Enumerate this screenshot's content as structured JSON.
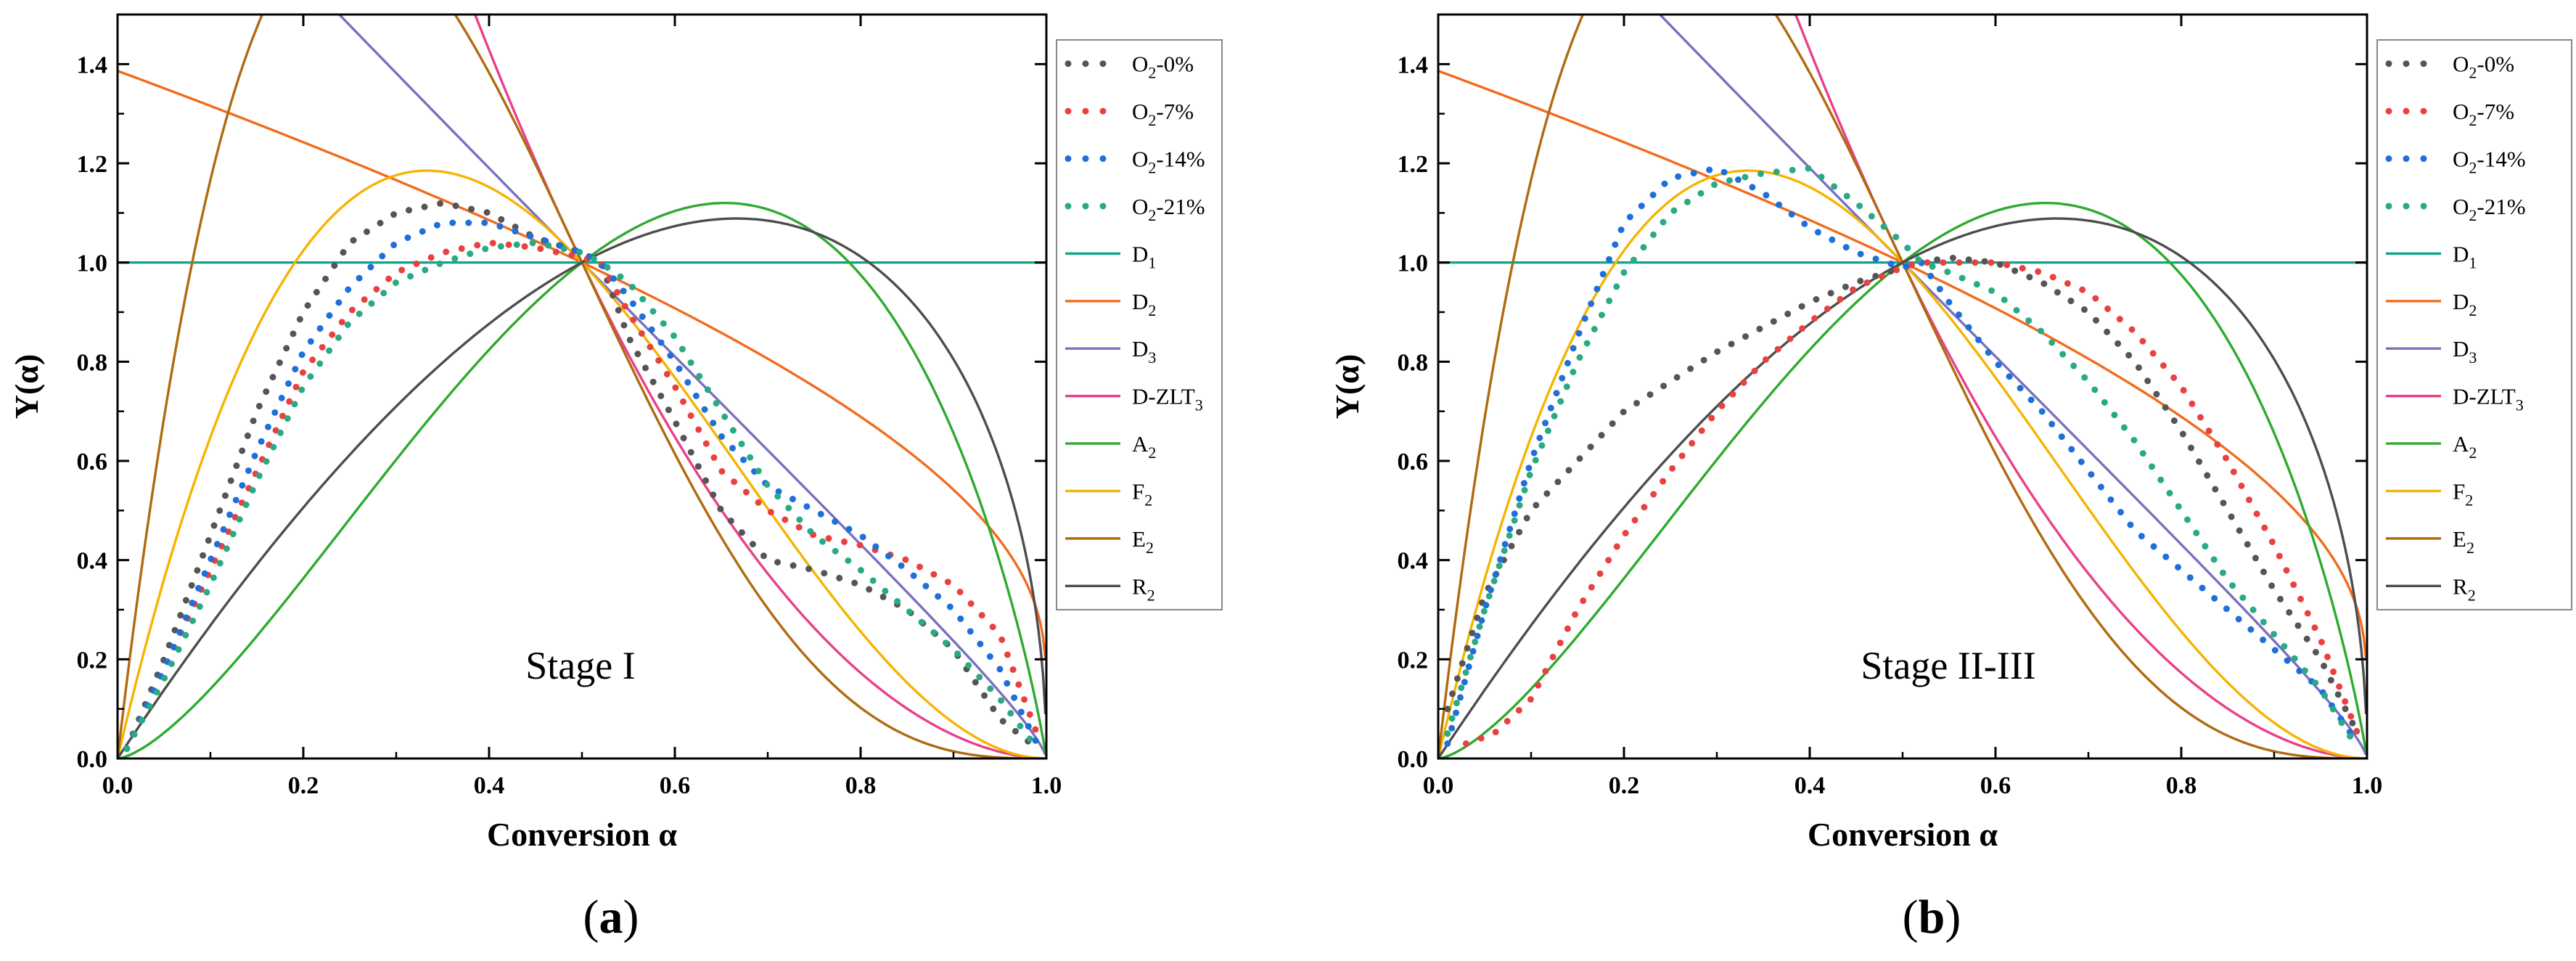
{
  "chart_data": [
    {
      "type": "line",
      "panel": "a",
      "panel_label_prefix": "(",
      "panel_label_letter": "a",
      "panel_label_suffix": ")",
      "annotation": "Stage I",
      "xlabel": "Conversion α",
      "ylabel": "Y(α)",
      "xlim": [
        0,
        1.0
      ],
      "ylim": [
        0,
        1.5
      ],
      "x_ticks": [
        "0.0",
        "0.2",
        "0.4",
        "0.6",
        "0.8",
        "1.0"
      ],
      "y_ticks": [
        "0.0",
        "0.2",
        "0.4",
        "0.6",
        "0.8",
        "1.0",
        "1.2",
        "1.4"
      ],
      "series": [
        {
          "name": "O2-0%",
          "name_main": "O",
          "name_sub": "2",
          "name_rest": "-0%",
          "style": "dotted",
          "color": "#555555",
          "x": [
            0.01,
            0.05,
            0.1,
            0.15,
            0.2,
            0.25,
            0.3,
            0.35,
            0.4,
            0.45,
            0.5,
            0.52,
            0.55,
            0.6,
            0.65,
            0.7,
            0.75,
            0.8,
            0.85,
            0.9,
            0.95,
            0.99
          ],
          "y": [
            0.02,
            0.2,
            0.45,
            0.7,
            0.9,
            1.04,
            1.1,
            1.12,
            1.1,
            1.05,
            1.02,
            1.0,
            0.85,
            0.68,
            0.5,
            0.4,
            0.38,
            0.35,
            0.3,
            0.22,
            0.08,
            0.02
          ]
        },
        {
          "name": "O2-7%",
          "name_main": "O",
          "name_sub": "2",
          "name_rest": "-7%",
          "style": "dotted",
          "color": "#e8413f",
          "x": [
            0.01,
            0.05,
            0.1,
            0.15,
            0.2,
            0.25,
            0.3,
            0.35,
            0.4,
            0.45,
            0.5,
            0.52,
            0.55,
            0.6,
            0.65,
            0.7,
            0.75,
            0.8,
            0.85,
            0.9,
            0.95,
            0.99
          ],
          "y": [
            0.02,
            0.18,
            0.38,
            0.58,
            0.78,
            0.9,
            0.98,
            1.02,
            1.04,
            1.03,
            1.01,
            1.0,
            0.9,
            0.75,
            0.58,
            0.5,
            0.45,
            0.43,
            0.4,
            0.35,
            0.25,
            0.05
          ]
        },
        {
          "name": "O2-14%",
          "name_main": "O",
          "name_sub": "2",
          "name_rest": "-14%",
          "style": "dotted",
          "color": "#1e6fd9",
          "x": [
            0.01,
            0.05,
            0.1,
            0.15,
            0.2,
            0.25,
            0.3,
            0.35,
            0.4,
            0.45,
            0.5,
            0.52,
            0.55,
            0.6,
            0.65,
            0.7,
            0.75,
            0.8,
            0.85,
            0.9,
            0.95,
            0.99
          ],
          "y": [
            0.02,
            0.18,
            0.4,
            0.62,
            0.82,
            0.95,
            1.04,
            1.08,
            1.08,
            1.05,
            1.02,
            1.0,
            0.93,
            0.8,
            0.65,
            0.55,
            0.5,
            0.45,
            0.38,
            0.3,
            0.18,
            0.03
          ]
        },
        {
          "name": "O2-21%",
          "name_main": "O",
          "name_sub": "2",
          "name_rest": "-21%",
          "style": "dotted",
          "color": "#2aa985",
          "x": [
            0.01,
            0.05,
            0.1,
            0.15,
            0.2,
            0.25,
            0.3,
            0.35,
            0.4,
            0.45,
            0.5,
            0.52,
            0.55,
            0.6,
            0.65,
            0.7,
            0.75,
            0.8,
            0.85,
            0.9,
            0.95,
            0.99
          ],
          "y": [
            0.02,
            0.16,
            0.35,
            0.56,
            0.75,
            0.88,
            0.96,
            1.0,
            1.03,
            1.04,
            1.02,
            1.0,
            0.96,
            0.85,
            0.7,
            0.55,
            0.45,
            0.38,
            0.3,
            0.22,
            0.12,
            0.02
          ]
        }
      ]
    },
    {
      "type": "line",
      "panel": "b",
      "panel_label_prefix": "(",
      "panel_label_letter": "b",
      "panel_label_suffix": ")",
      "annotation": "Stage II-III",
      "xlabel": "Conversion α",
      "ylabel": "Y(α)",
      "xlim": [
        0,
        1.0
      ],
      "ylim": [
        0,
        1.5
      ],
      "x_ticks": [
        "0.0",
        "0.2",
        "0.4",
        "0.6",
        "0.8",
        "1.0"
      ],
      "y_ticks": [
        "0.0",
        "0.2",
        "0.4",
        "0.6",
        "0.8",
        "1.0",
        "1.2",
        "1.4"
      ],
      "series": [
        {
          "name": "O2-0%",
          "name_main": "O",
          "name_sub": "2",
          "name_rest": "-0%",
          "style": "dotted",
          "color": "#555555",
          "x": [
            0.01,
            0.05,
            0.1,
            0.15,
            0.2,
            0.25,
            0.3,
            0.35,
            0.4,
            0.45,
            0.5,
            0.52,
            0.55,
            0.6,
            0.65,
            0.7,
            0.75,
            0.8,
            0.85,
            0.9,
            0.95,
            0.99
          ],
          "y": [
            0.1,
            0.33,
            0.5,
            0.6,
            0.7,
            0.76,
            0.82,
            0.87,
            0.92,
            0.96,
            0.99,
            1.0,
            1.01,
            1.0,
            0.96,
            0.9,
            0.8,
            0.66,
            0.5,
            0.34,
            0.2,
            0.05
          ]
        },
        {
          "name": "O2-7%",
          "name_main": "O",
          "name_sub": "2",
          "name_rest": "-7%",
          "style": "dotted",
          "color": "#e8413f",
          "x": [
            0.03,
            0.06,
            0.1,
            0.15,
            0.2,
            0.25,
            0.3,
            0.35,
            0.4,
            0.45,
            0.5,
            0.52,
            0.55,
            0.6,
            0.65,
            0.7,
            0.75,
            0.8,
            0.85,
            0.9,
            0.95,
            0.99
          ],
          "y": [
            0.03,
            0.05,
            0.12,
            0.3,
            0.45,
            0.58,
            0.7,
            0.8,
            0.88,
            0.95,
            0.99,
            1.0,
            1.0,
            1.0,
            0.98,
            0.94,
            0.86,
            0.75,
            0.6,
            0.43,
            0.24,
            0.05
          ]
        },
        {
          "name": "O2-14%",
          "name_main": "O",
          "name_sub": "2",
          "name_rest": "-14%",
          "style": "dotted",
          "color": "#1e6fd9",
          "x": [
            0.01,
            0.05,
            0.1,
            0.15,
            0.2,
            0.25,
            0.3,
            0.35,
            0.4,
            0.45,
            0.5,
            0.52,
            0.55,
            0.6,
            0.65,
            0.7,
            0.75,
            0.8,
            0.85,
            0.9,
            0.95,
            0.99
          ],
          "y": [
            0.03,
            0.3,
            0.6,
            0.85,
            1.08,
            1.17,
            1.19,
            1.14,
            1.07,
            1.02,
            0.99,
            1.0,
            0.92,
            0.8,
            0.7,
            0.58,
            0.46,
            0.38,
            0.3,
            0.22,
            0.14,
            0.03
          ]
        },
        {
          "name": "O2-21%",
          "name_main": "O",
          "name_sub": "2",
          "name_rest": "-21%",
          "style": "dotted",
          "color": "#2aa985",
          "x": [
            0.01,
            0.05,
            0.1,
            0.15,
            0.2,
            0.25,
            0.3,
            0.35,
            0.4,
            0.45,
            0.5,
            0.52,
            0.55,
            0.6,
            0.65,
            0.7,
            0.75,
            0.8,
            0.85,
            0.9,
            0.95,
            0.99
          ],
          "y": [
            0.05,
            0.3,
            0.58,
            0.8,
            0.98,
            1.1,
            1.16,
            1.18,
            1.19,
            1.12,
            1.04,
            1.0,
            0.98,
            0.94,
            0.86,
            0.76,
            0.64,
            0.5,
            0.36,
            0.25,
            0.14,
            0.02
          ]
        }
      ]
    }
  ],
  "model_curves": [
    {
      "key": "D1",
      "name": "D1",
      "name_main": "D",
      "name_sub": "1",
      "name_rest": "",
      "color": "#17a589"
    },
    {
      "key": "D2",
      "name": "D2",
      "name_main": "D",
      "name_sub": "2",
      "name_rest": "",
      "color": "#f26b1d"
    },
    {
      "key": "D3",
      "name": "D3",
      "name_main": "D",
      "name_sub": "3",
      "name_rest": "",
      "color": "#7b6fc1"
    },
    {
      "key": "DZLT3",
      "name": "D-ZLT3",
      "name_main": "D-ZLT",
      "name_sub": "3",
      "name_rest": "",
      "color": "#e8408a"
    },
    {
      "key": "A2",
      "name": "A2",
      "name_main": "A",
      "name_sub": "2",
      "name_rest": "",
      "color": "#2eaa2e"
    },
    {
      "key": "F2",
      "name": "F2",
      "name_main": "F",
      "name_sub": "2",
      "name_rest": "",
      "color": "#f5b400"
    },
    {
      "key": "E2",
      "name": "E2",
      "name_main": "E",
      "name_sub": "2",
      "name_rest": "",
      "color": "#b06a10"
    },
    {
      "key": "R2",
      "name": "R2",
      "name_main": "R",
      "name_sub": "2",
      "name_rest": "",
      "color": "#4d4d4d"
    }
  ]
}
